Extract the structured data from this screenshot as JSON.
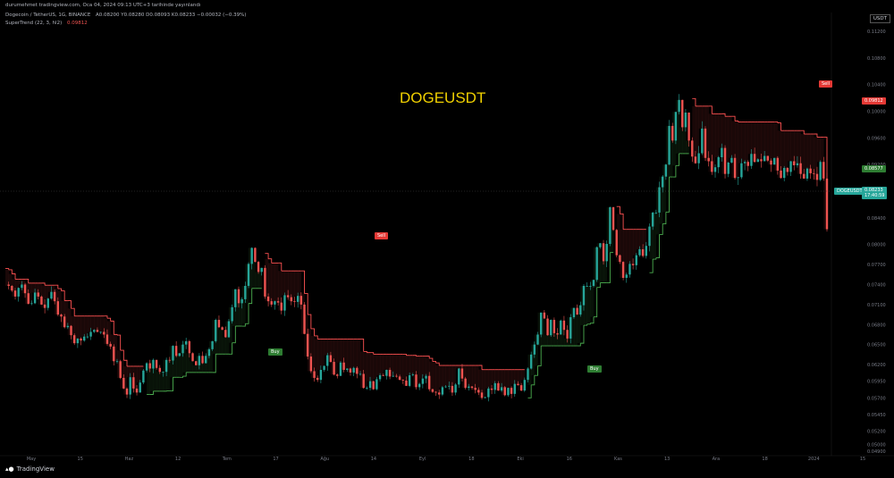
{
  "header": {
    "line1": "durumehmet tradingview.com, Oca 04, 2024 09:13 UTC+3 tarihinde yayınlandı",
    "symbol": "Dogecoin / TetherUS, 1G, BINANCE",
    "ohlc": "A0.08200 Y0.08280 D0.08093 K0.08233 −0.00032 (−0.39%)",
    "indicator": "SuperTrend (22, 3, hl2)",
    "indicator_value": "0.09812"
  },
  "overlay_title": "DOGEUSDT",
  "quote_unit": "USDT",
  "footer": {
    "brand": "TradingView"
  },
  "colors": {
    "up": "#26a69a",
    "down": "#ef5350",
    "st_up": "#4caf50",
    "st_down": "#ff5252",
    "title": "#f0d000"
  },
  "price_labels": {
    "st_red": "0.09812",
    "st_green": "0.08577",
    "last_symbol": "DOGEUSDT",
    "last_price": "0.08233",
    "countdown": "17:40:59"
  },
  "chart_data": {
    "type": "candlestick",
    "title": "DOGEUSDT",
    "ylim": [
      0.049,
      0.112
    ],
    "y_ticks": [
      "0.11200",
      "0.10800",
      "0.10400",
      "0.10000",
      "0.09600",
      "0.09200",
      "0.08800",
      "0.08400",
      "0.08000",
      "0.07700",
      "0.07400",
      "0.07100",
      "0.06800",
      "0.06500",
      "0.06200",
      "0.05950",
      "0.05700",
      "0.05450",
      "0.05200",
      "0.05000",
      "0.04900"
    ],
    "x_ticks": [
      "May",
      "15",
      "Haz",
      "12",
      "Tem",
      "17",
      "Ağu",
      "14",
      "Eyl",
      "18",
      "Eki",
      "16",
      "Kas",
      "13",
      "Ara",
      "18",
      "2024",
      "15"
    ],
    "close": [
      0.074,
      0.0738,
      0.0731,
      0.0722,
      0.0735,
      0.074,
      0.0727,
      0.0711,
      0.0712,
      0.0728,
      0.0722,
      0.071,
      0.0705,
      0.0719,
      0.0729,
      0.0715,
      0.0695,
      0.0692,
      0.0676,
      0.0678,
      0.0664,
      0.0652,
      0.0659,
      0.0656,
      0.0662,
      0.0662,
      0.0669,
      0.0672,
      0.0669,
      0.0669,
      0.0665,
      0.0651,
      0.0647,
      0.0625,
      0.0625,
      0.06,
      0.0584,
      0.0575,
      0.0601,
      0.0584,
      0.0578,
      0.0593,
      0.0611,
      0.0622,
      0.0614,
      0.0627,
      0.0615,
      0.0609,
      0.0609,
      0.0627,
      0.0626,
      0.0648,
      0.0633,
      0.0637,
      0.065,
      0.0655,
      0.0637,
      0.0625,
      0.0619,
      0.0633,
      0.0622,
      0.0633,
      0.0643,
      0.0655,
      0.0687,
      0.0676,
      0.0672,
      0.0661,
      0.0685,
      0.0706,
      0.0733,
      0.0712,
      0.0718,
      0.0738,
      0.0771,
      0.0795,
      0.0774,
      0.0759,
      0.0765,
      0.0722,
      0.0715,
      0.071,
      0.0715,
      0.0713,
      0.0701,
      0.0724,
      0.0721,
      0.0715,
      0.0714,
      0.0723,
      0.071,
      0.0666,
      0.0632,
      0.061,
      0.06,
      0.0597,
      0.0612,
      0.0618,
      0.0634,
      0.0624,
      0.0605,
      0.0603,
      0.0623,
      0.0612,
      0.0614,
      0.0608,
      0.0615,
      0.0606,
      0.0606,
      0.0585,
      0.0585,
      0.0595,
      0.0583,
      0.0598,
      0.0604,
      0.0603,
      0.0612,
      0.0602,
      0.0603,
      0.0602,
      0.0597,
      0.0596,
      0.0588,
      0.0604,
      0.0605,
      0.0586,
      0.0591,
      0.0599,
      0.0603,
      0.0583,
      0.0579,
      0.0578,
      0.0575,
      0.0586,
      0.0587,
      0.0588,
      0.0578,
      0.059,
      0.0614,
      0.0599,
      0.0585,
      0.0587,
      0.0585,
      0.0582,
      0.0578,
      0.057,
      0.0571,
      0.0584,
      0.0582,
      0.0592,
      0.0581,
      0.0586,
      0.0574,
      0.0585,
      0.0576,
      0.0591,
      0.0589,
      0.0581,
      0.0597,
      0.0614,
      0.0635,
      0.065,
      0.0665,
      0.0698,
      0.0689,
      0.0664,
      0.0687,
      0.0667,
      0.0665,
      0.0686,
      0.0672,
      0.0659,
      0.0691,
      0.0705,
      0.0695,
      0.0709,
      0.0738,
      0.0738,
      0.0738,
      0.0747,
      0.0796,
      0.0802,
      0.0775,
      0.0801,
      0.0856,
      0.0822,
      0.0784,
      0.0774,
      0.075,
      0.0755,
      0.0771,
      0.0769,
      0.0784,
      0.0793,
      0.0783,
      0.0798,
      0.0827,
      0.0848,
      0.0848,
      0.0886,
      0.0902,
      0.092,
      0.0978,
      0.0956,
      0.0999,
      0.1017,
      0.0976,
      0.0998,
      0.0956,
      0.0932,
      0.0922,
      0.0937,
      0.0974,
      0.093,
      0.0925,
      0.0909,
      0.0916,
      0.0931,
      0.0945,
      0.0906,
      0.0923,
      0.093,
      0.09,
      0.0901,
      0.0922,
      0.0924,
      0.0918,
      0.0936,
      0.0924,
      0.0928,
      0.0925,
      0.0933,
      0.0926,
      0.092,
      0.093,
      0.0911,
      0.09,
      0.0915,
      0.0909,
      0.0925,
      0.0919,
      0.0922,
      0.0906,
      0.0899,
      0.0914,
      0.0907,
      0.0906,
      0.0897,
      0.0924,
      0.0899,
      0.0823
    ],
    "supertrend_up": {
      "label": "Buy"
    },
    "supertrend_down": {
      "label": "Sell"
    }
  }
}
